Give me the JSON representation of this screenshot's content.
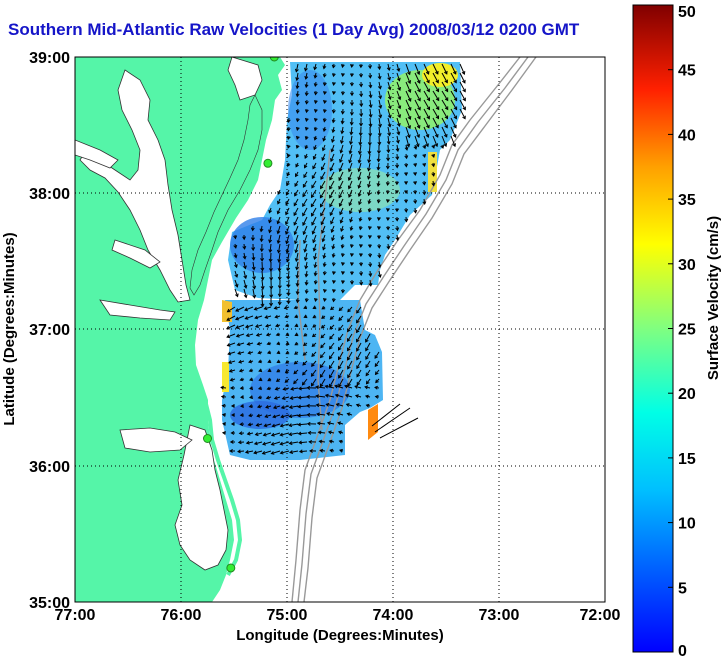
{
  "title": "Southern Mid-Atlantic Raw Velocities (1 Day Avg) 2008/03/12 0200 GMT",
  "xlabel": "Longitude (Degrees:Minutes)",
  "ylabel": "Latitude (Degrees:Minutes)",
  "colorbar_label": "Surface Velocity (cm/s)",
  "x_ticks": [
    "77:00",
    "76:00",
    "75:00",
    "74:00",
    "73:00",
    "72:00"
  ],
  "y_ticks": [
    "39:00",
    "38:00",
    "37:00",
    "36:00",
    "35:00"
  ],
  "colorbar_ticks": [
    "50",
    "45",
    "40",
    "35",
    "30",
    "25",
    "20",
    "15",
    "10",
    "5",
    "0"
  ],
  "colors": {
    "land": "#55f5a8",
    "title": "#1515c8",
    "bathymetry": "#999999",
    "grid": "#000000",
    "station": "#33ee33"
  },
  "map": {
    "lon_range": [
      -77,
      -72
    ],
    "lat_range": [
      35,
      39
    ],
    "velocity_range_cm_s": [
      0,
      50
    ],
    "colormap": "jet",
    "stations": [
      {
        "lon": -75.12,
        "lat": 39.0
      },
      {
        "lon": -75.18,
        "lat": 38.22
      },
      {
        "lon": -75.75,
        "lat": 36.2
      },
      {
        "lon": -75.53,
        "lat": 35.25
      }
    ]
  }
}
